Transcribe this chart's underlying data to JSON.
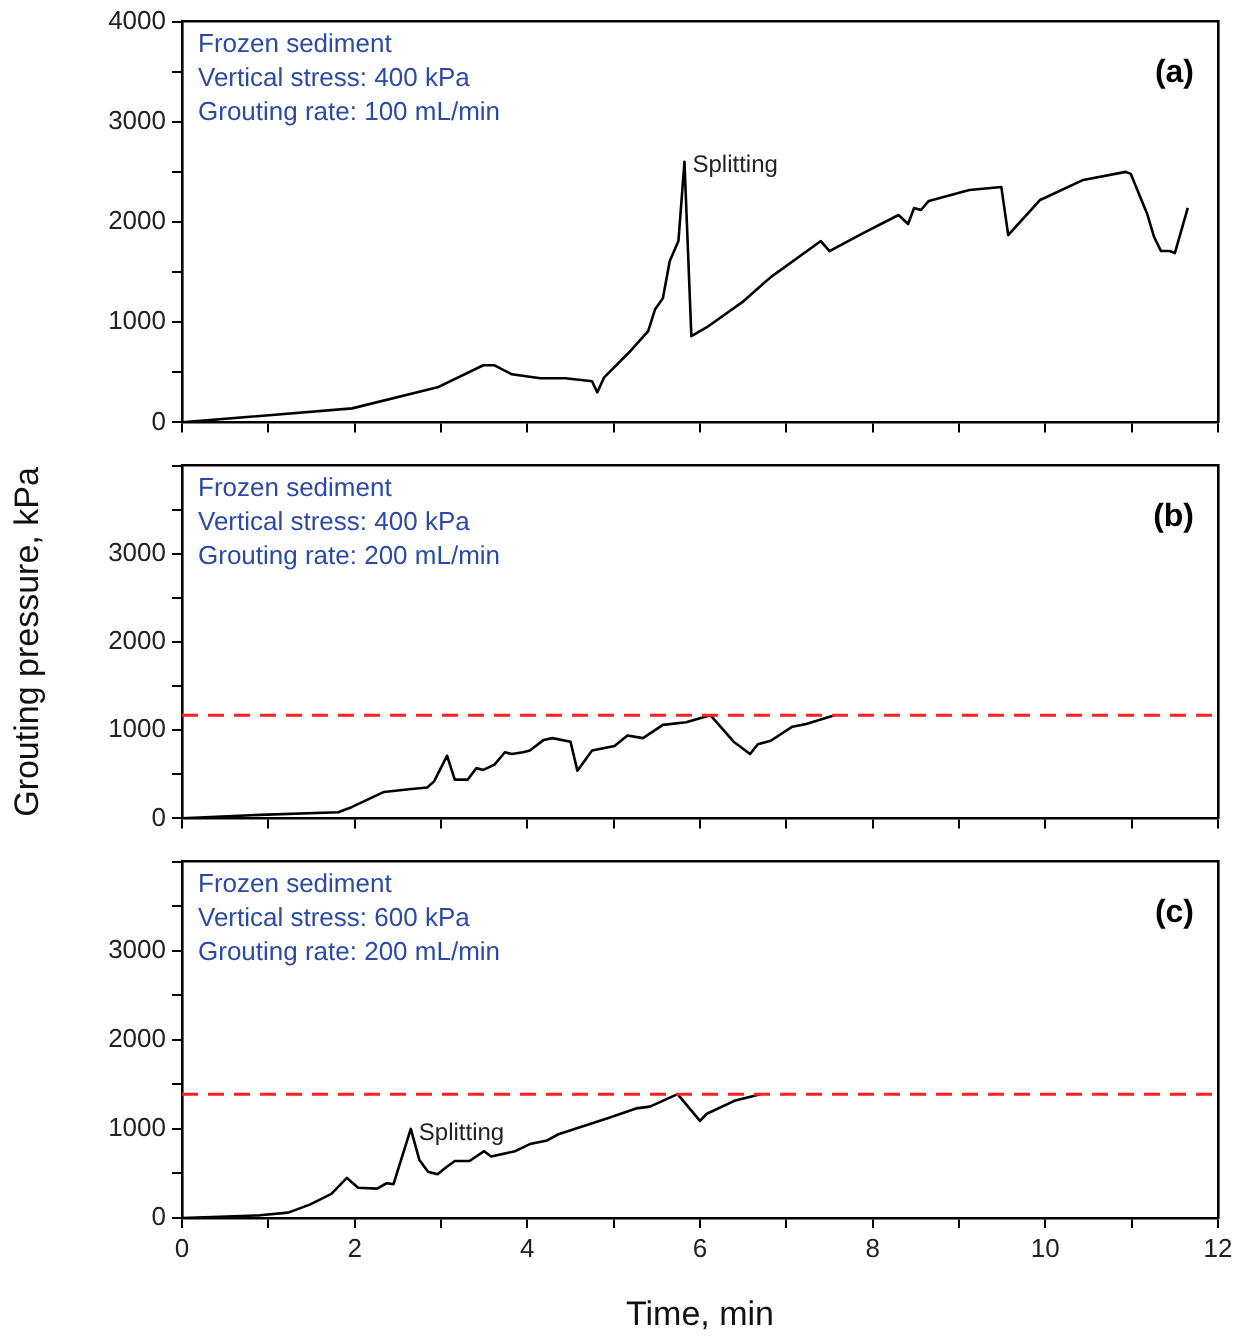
{
  "chart_data": [
    {
      "type": "line",
      "title": "(a)",
      "annotations": [
        "Frozen sediment",
        "Vertical stress: 400 kPa",
        "Grouting rate: 100 mL/min",
        {
          "text": "Splitting",
          "x": 5.82,
          "y": 2604
        }
      ],
      "tick_labels": "y",
      "xlim": [
        0,
        12
      ],
      "ylim": [
        0,
        4000
      ],
      "xticks": [
        0,
        {
          "value": 1,
          "label": null
        },
        {
          "value": 2,
          "label": null
        },
        {
          "value": 3,
          "label": null
        },
        {
          "value": 4,
          "label": null
        },
        {
          "value": 5,
          "label": null
        },
        {
          "value": 6,
          "label": null
        },
        {
          "value": 7,
          "label": null
        },
        {
          "value": 8,
          "label": null
        },
        {
          "value": 9,
          "label": null
        },
        {
          "value": 10,
          "label": null
        },
        {
          "value": 11,
          "label": null
        },
        {
          "value": 12,
          "label": null
        }
      ],
      "yticks": [
        0,
        {
          "value": 500,
          "label": null
        },
        1000,
        {
          "value": 1500,
          "label": null
        },
        2000,
        {
          "value": 2500,
          "label": null
        },
        3000,
        {
          "value": 3500,
          "label": null
        },
        4000
      ],
      "series": [
        {
          "color": "#000000",
          "x": [
            0,
            1.97,
            2.96,
            3.49,
            3.62,
            3.82,
            4.15,
            4.44,
            4.75,
            4.81,
            4.89,
            5.18,
            5.4,
            5.48,
            5.57,
            5.65,
            5.75,
            5.82,
            5.9,
            6.08,
            6.49,
            6.82,
            7.4,
            7.5,
            7.89,
            8.3,
            8.41,
            8.48,
            8.56,
            8.65,
            9.12,
            9.49,
            9.57,
            9.94,
            10.44,
            10.93,
            10.99,
            11.18,
            11.26,
            11.34,
            11.44,
            11.5,
            11.65
          ],
          "values": [
            0,
            140,
            350,
            570,
            570,
            480,
            440,
            440,
            410,
            300,
            450,
            700,
            910,
            1130,
            1240,
            1610,
            1810,
            2600,
            860,
            950,
            1200,
            1450,
            1810,
            1710,
            1890,
            2070,
            1980,
            2140,
            2120,
            2210,
            2320,
            2350,
            1870,
            2220,
            2420,
            2500,
            2480,
            2080,
            1850,
            1710,
            1710,
            1690,
            2140
          ]
        }
      ]
    },
    {
      "type": "line",
      "title": "(b)",
      "ylabel": "Grouting pressure, kPa",
      "annotations": [
        "Frozen sediment",
        "Vertical stress: 400 kPa",
        "Grouting rate: 200 mL/min"
      ],
      "tick_labels": "y",
      "xlim": [
        0,
        12
      ],
      "ylim": [
        0,
        4000
      ],
      "xticks": [
        0,
        {
          "value": 1,
          "label": null
        },
        {
          "value": 2,
          "label": null
        },
        {
          "value": 3,
          "label": null
        },
        {
          "value": 4,
          "label": null
        },
        {
          "value": 5,
          "label": null
        },
        {
          "value": 6,
          "label": null
        },
        {
          "value": 7,
          "label": null
        },
        {
          "value": 8,
          "label": null
        },
        {
          "value": 9,
          "label": null
        },
        {
          "value": 10,
          "label": null
        },
        {
          "value": 11,
          "label": null
        },
        {
          "value": 12,
          "label": null
        }
      ],
      "yticks": [
        0,
        {
          "value": 500,
          "label": null
        },
        1000,
        {
          "value": 1500,
          "label": null
        },
        2000,
        {
          "value": 2500,
          "label": null
        },
        3000,
        {
          "value": 3500,
          "label": null
        },
        {
          "value": 4000,
          "label": null
        }
      ],
      "ref_lines": [
        {
          "axis": "y",
          "value": 1170,
          "color": "#ff2020",
          "line_style": "dashed"
        }
      ],
      "series": [
        {
          "color": "#000000",
          "x": [
            0,
            0.9,
            1.81,
            1.97,
            2.34,
            2.63,
            2.84,
            2.92,
            3.07,
            3.16,
            3.31,
            3.41,
            3.49,
            3.62,
            3.74,
            3.82,
            3.95,
            4.03,
            4.19,
            4.29,
            4.5,
            4.58,
            4.75,
            5.01,
            5.16,
            5.34,
            5.57,
            5.84,
            6.12,
            6.39,
            6.58,
            6.67,
            6.82,
            7.07,
            7.23,
            7.56
          ],
          "values": [
            0,
            40,
            70,
            130,
            300,
            330,
            350,
            420,
            710,
            440,
            440,
            570,
            550,
            610,
            750,
            730,
            750,
            770,
            890,
            910,
            870,
            540,
            770,
            820,
            940,
            910,
            1060,
            1090,
            1170,
            870,
            730,
            840,
            880,
            1040,
            1070,
            1170
          ]
        }
      ]
    },
    {
      "type": "line",
      "title": "(c)",
      "xlabel": "Time, min",
      "annotations": [
        "Frozen sediment",
        "Vertical stress: 600 kPa",
        "Grouting rate: 200 mL/min",
        {
          "text": "Splitting",
          "x": 2.65,
          "y": 1000
        }
      ],
      "xlim": [
        0,
        12
      ],
      "ylim": [
        0,
        4000
      ],
      "xticks": [
        0,
        {
          "value": 1,
          "label": null
        },
        2,
        {
          "value": 3,
          "label": null
        },
        4,
        {
          "value": 5,
          "label": null
        },
        6,
        {
          "value": 7,
          "label": null
        },
        8,
        {
          "value": 9,
          "label": null
        },
        10,
        {
          "value": 11,
          "label": null
        },
        12
      ],
      "yticks": [
        0,
        {
          "value": 500,
          "label": null
        },
        1000,
        {
          "value": 1500,
          "label": null
        },
        2000,
        {
          "value": 2500,
          "label": null
        },
        3000,
        {
          "value": 3500,
          "label": null
        },
        {
          "value": 4000,
          "label": null
        }
      ],
      "ref_lines": [
        {
          "axis": "y",
          "value": 1390,
          "color": "#ff2020",
          "line_style": "dashed"
        }
      ],
      "series": [
        {
          "color": "#000000",
          "x": [
            0,
            0.9,
            1.23,
            1.48,
            1.73,
            1.89,
            1.91,
            2.04,
            2.26,
            2.37,
            2.45,
            2.65,
            2.75,
            2.85,
            2.96,
            3.06,
            3.16,
            3.33,
            3.5,
            3.58,
            3.86,
            4.03,
            4.23,
            4.36,
            4.93,
            5.26,
            5.42,
            5.74,
            6.0,
            6.08,
            6.41,
            6.7
          ],
          "values": [
            0,
            30,
            60,
            150,
            270,
            430,
            450,
            340,
            330,
            390,
            380,
            1000,
            650,
            520,
            490,
            570,
            640,
            640,
            750,
            690,
            750,
            830,
            870,
            940,
            1120,
            1230,
            1250,
            1390,
            1090,
            1170,
            1320,
            1390
          ]
        }
      ]
    }
  ]
}
